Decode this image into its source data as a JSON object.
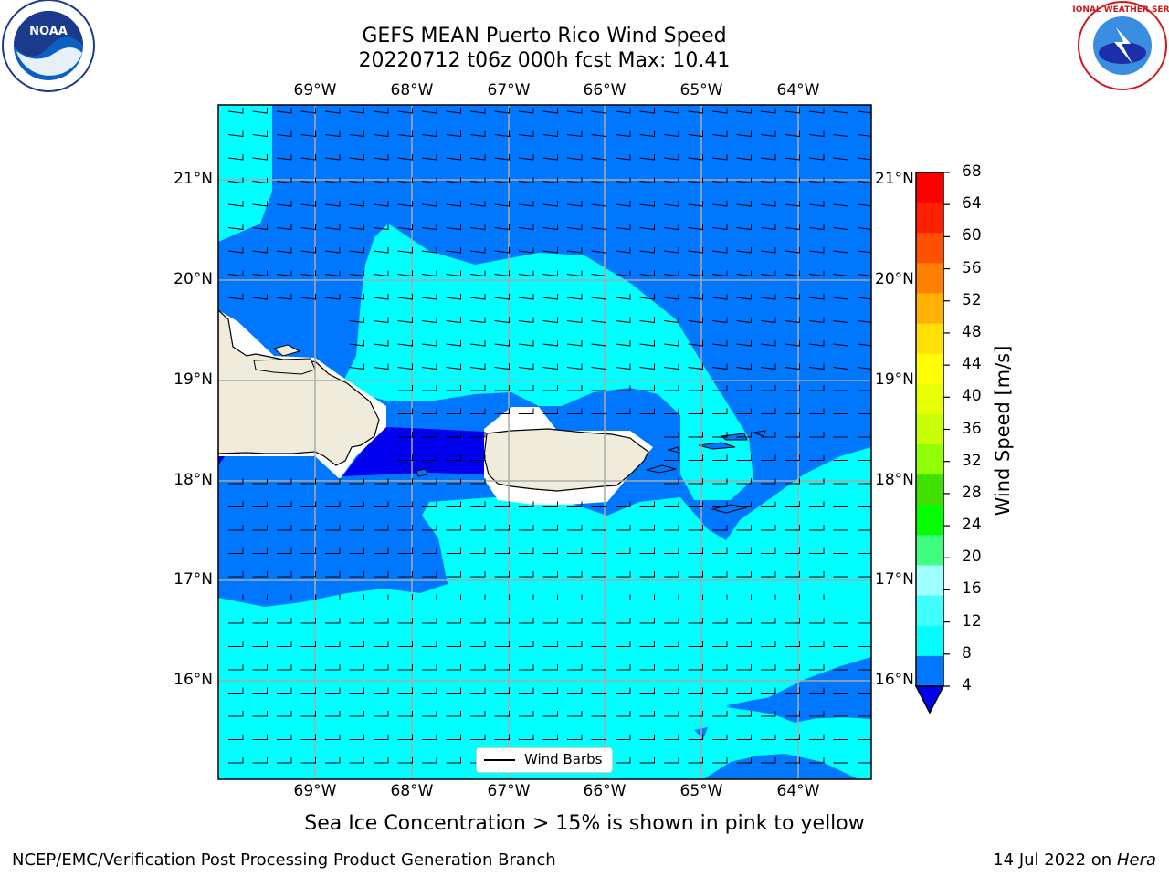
{
  "title": {
    "line1": "GEFS MEAN Puerto Rico Wind Speed",
    "line2": "20220712 t06z 000h fcst   Max: 10.41"
  },
  "map": {
    "lon_ticks": [
      "69°W",
      "68°W",
      "67°W",
      "66°W",
      "65°W",
      "64°W"
    ],
    "lat_ticks": [
      "21°N",
      "20°N",
      "19°N",
      "18°N",
      "17°N",
      "16°N"
    ],
    "legend_label": "Wind Barbs",
    "colors": {
      "land": "#efecdc",
      "deep_blue": "#0000ee",
      "blue": "#0077ff",
      "cyan": "#00ffff"
    }
  },
  "colorbar": {
    "label": "Wind Speed [m/s]",
    "ticks": [
      "68",
      "64",
      "60",
      "56",
      "52",
      "48",
      "44",
      "40",
      "36",
      "32",
      "28",
      "24",
      "20",
      "16",
      "12",
      "8",
      "4"
    ],
    "colors_top_to_bottom": [
      "#ff0000",
      "#ff2000",
      "#ff5000",
      "#ff8000",
      "#ffb000",
      "#ffe000",
      "#ffff00",
      "#e8ff00",
      "#c8ff00",
      "#90ff00",
      "#40e000",
      "#00ff00",
      "#40ff80",
      "#a0ffff",
      "#40ffff",
      "#00ffff",
      "#0077ff"
    ],
    "under_color": "#0000ee"
  },
  "subtitle": "Sea Ice Concentration > 15% is shown in pink to yellow",
  "footer": {
    "left": "NCEP/EMC/Verification Post Processing Product Generation Branch",
    "date": "14 Jul 2022 on ",
    "machine": "Hera"
  },
  "logos": {
    "left": "NOAA",
    "right": "NATIONAL WEATHER SERVICE"
  }
}
